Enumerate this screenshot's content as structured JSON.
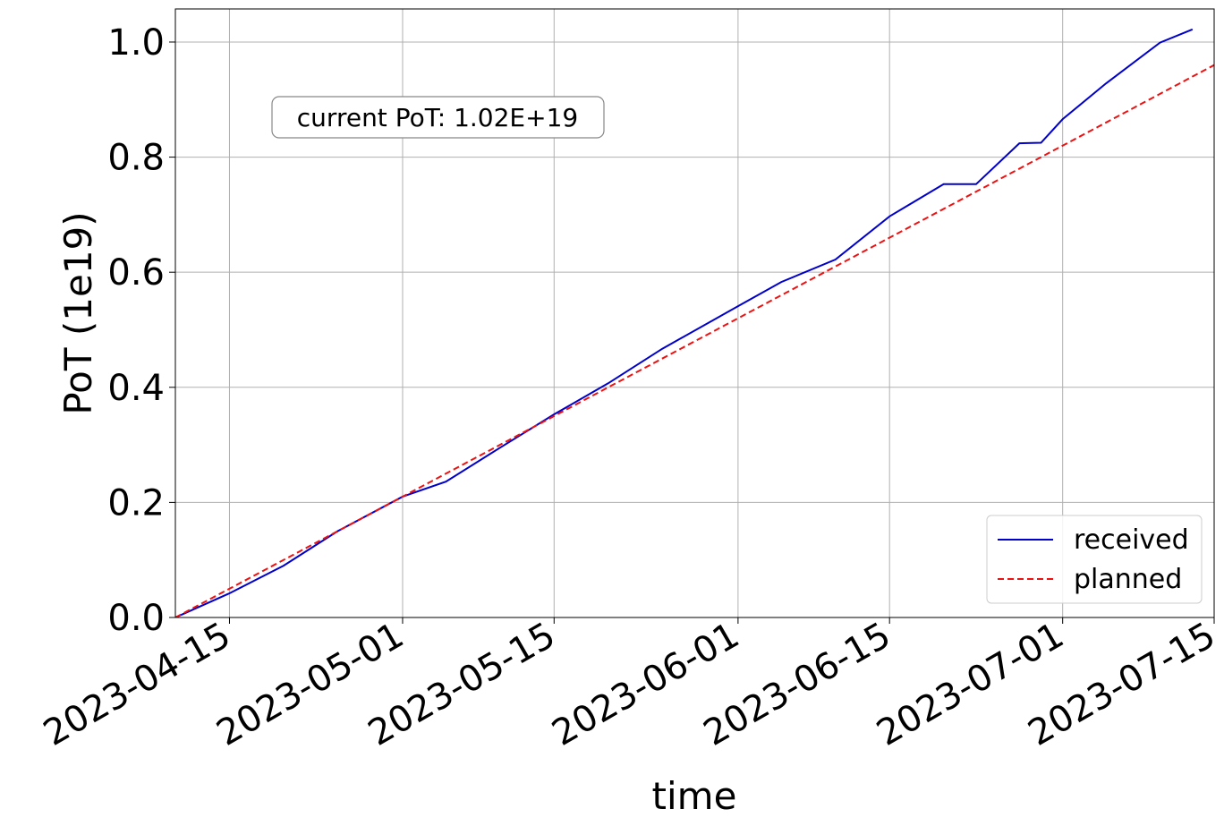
{
  "chart_data": {
    "type": "line",
    "xlabel": "time",
    "ylabel": "PoT (1e19)",
    "annotation": "current PoT:  1.02E+19",
    "xlim": [
      "2023-04-10",
      "2023-07-15"
    ],
    "xticks": [
      "2023-04-15",
      "2023-05-01",
      "2023-05-15",
      "2023-06-01",
      "2023-06-15",
      "2023-07-01",
      "2023-07-15"
    ],
    "ylim": [
      0,
      1.0575
    ],
    "yticks": [
      {
        "value": 0,
        "label": "0.0"
      },
      0.2,
      0.4,
      0.6,
      0.8,
      {
        "value": 1,
        "label": "1.0"
      }
    ],
    "grid": true,
    "legend": "lower right",
    "series": [
      {
        "name": "received",
        "color": "#0000cc",
        "dash": false,
        "x": [
          "2023-04-10",
          "2023-04-15",
          "2023-04-20",
          "2023-04-25",
          "2023-05-01",
          "2023-05-05",
          "2023-05-10",
          "2023-05-15",
          "2023-05-20",
          "2023-05-25",
          "2023-06-01",
          "2023-06-05",
          "2023-06-10",
          "2023-06-15",
          "2023-06-20",
          "2023-06-23",
          "2023-06-27",
          "2023-06-29",
          "2023-07-01",
          "2023-07-05",
          "2023-07-10",
          "2023-07-13"
        ],
        "values": [
          0,
          0.042,
          0.09,
          0.15,
          0.21,
          0.236,
          0.295,
          0.353,
          0.407,
          0.467,
          0.541,
          0.583,
          0.622,
          0.697,
          0.753,
          0.753,
          0.824,
          0.825,
          0.866,
          0.928,
          0.999,
          1.022
        ]
      },
      {
        "name": "planned",
        "color": "#ee1111",
        "dash": true,
        "x": [
          "2023-04-10",
          "2023-07-15"
        ],
        "values": [
          0,
          0.96
        ]
      }
    ]
  }
}
